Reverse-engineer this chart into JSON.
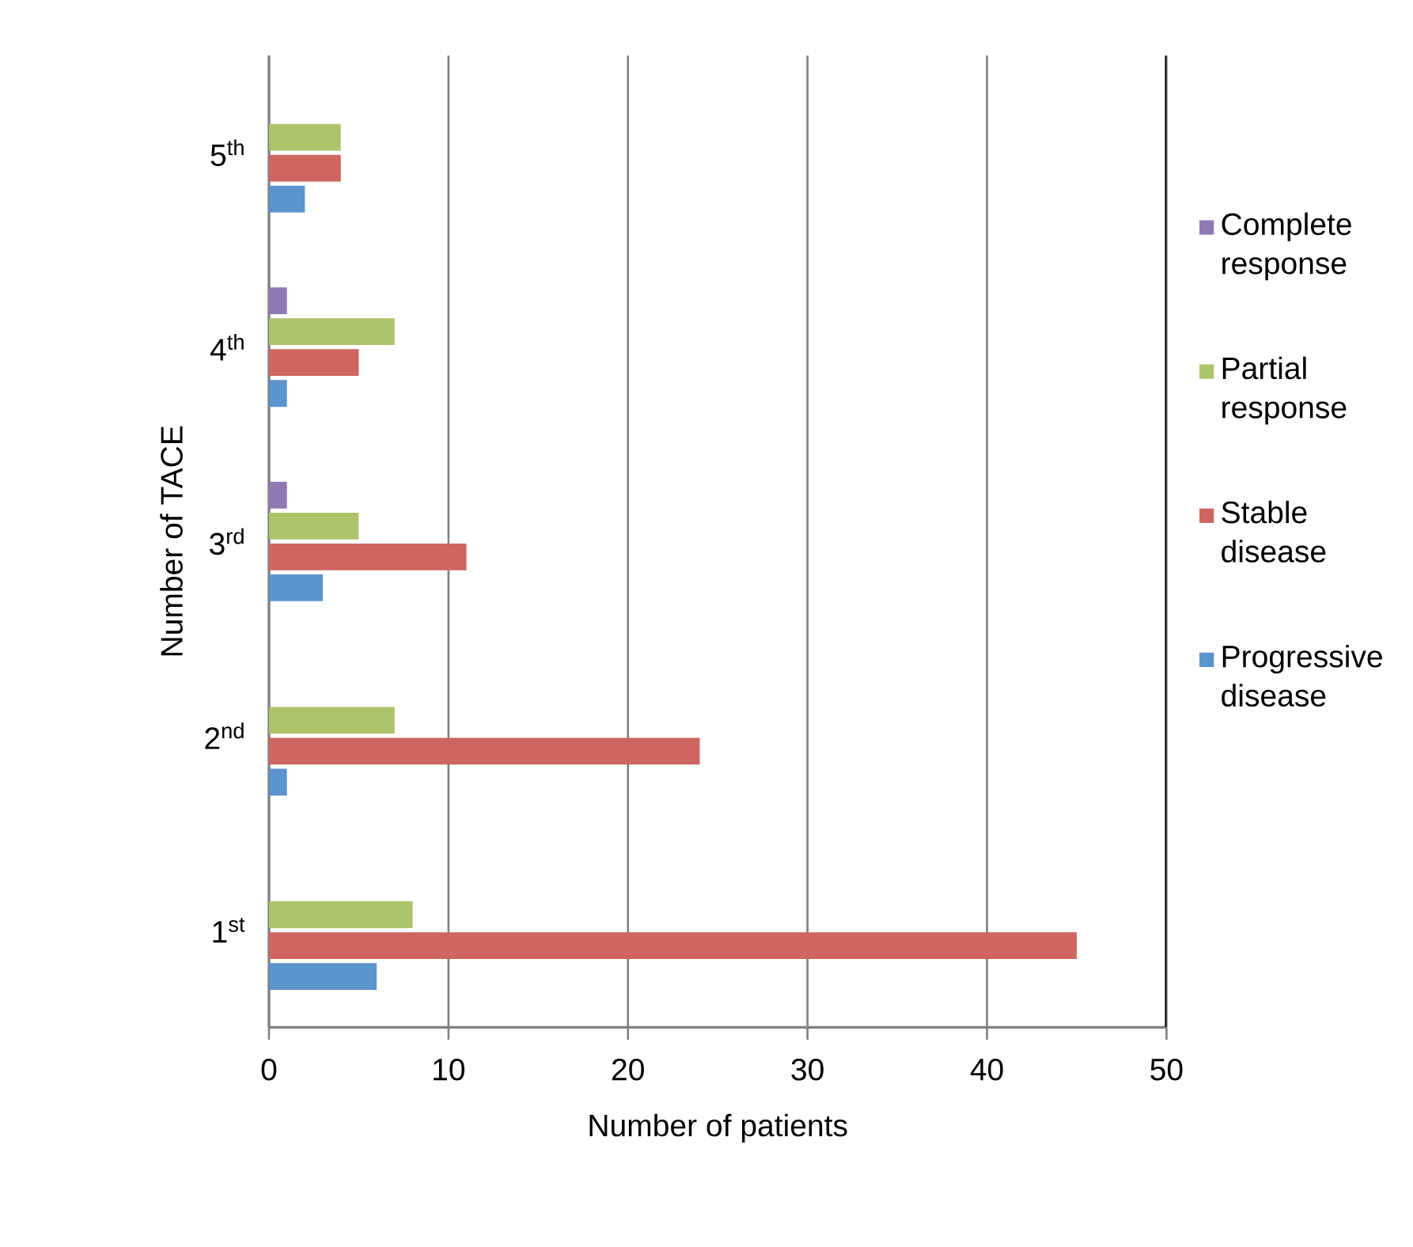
{
  "chart_data": {
    "type": "bar",
    "orientation": "horizontal",
    "xlabel": "Number of patients",
    "ylabel": "Number of TACE",
    "categories": [
      "5$^{th}$",
      "4$^{th}$",
      "3$^{rd}$",
      "2$^{nd}$",
      "1$^{st}$"
    ],
    "series": [
      {
        "name": "Progressive disease",
        "color": "#5b93cc",
        "values": [
          2,
          1,
          3,
          1,
          6
        ]
      },
      {
        "name": "Stable disease",
        "color": "#cf6560",
        "values": [
          4,
          5,
          11,
          24,
          45
        ]
      },
      {
        "name": "Partial response",
        "color": "#adc46b",
        "values": [
          4,
          7,
          5,
          7,
          8
        ]
      },
      {
        "name": "Complete response",
        "color": "#9179b4",
        "values": [
          null,
          1,
          1,
          null,
          null
        ]
      }
    ],
    "xlim": [
      0,
      50
    ],
    "xticks": [
      0,
      10,
      20,
      30,
      40,
      50
    ],
    "grid": "x",
    "legend": "right"
  }
}
